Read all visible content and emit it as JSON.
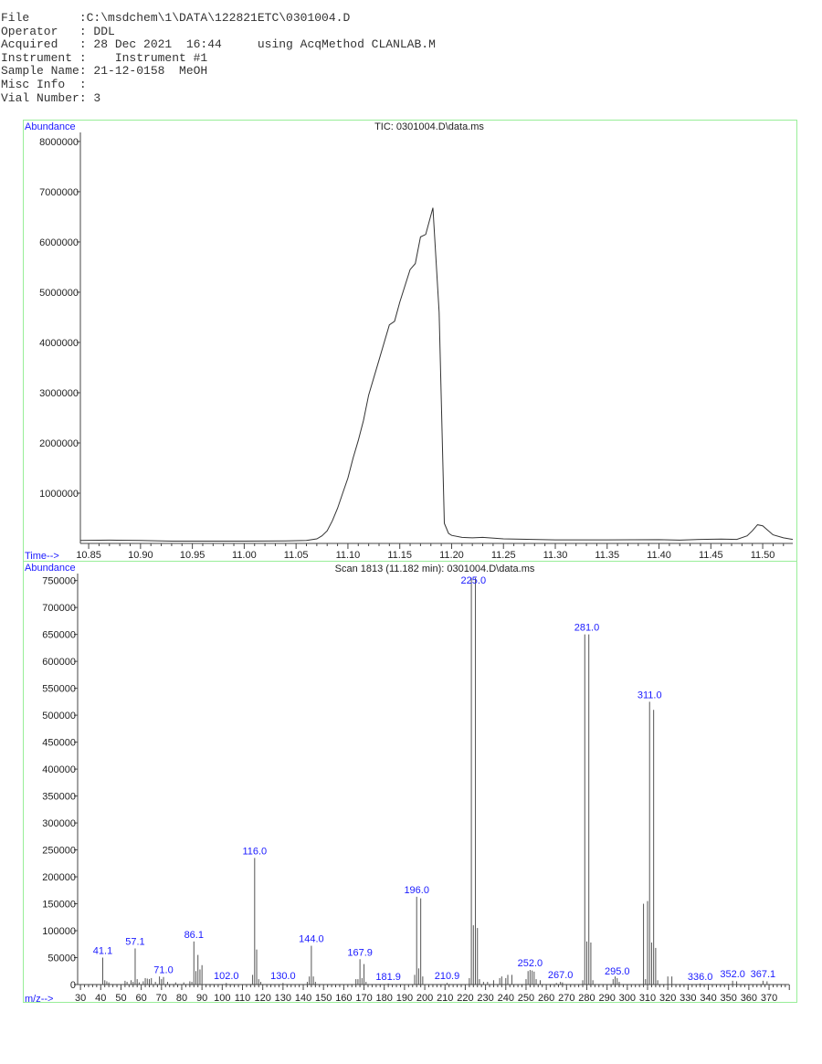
{
  "header": {
    "lines": [
      "File       :C:\\msdchem\\1\\DATA\\122821ETC\\0301004.D",
      "Operator   : DDL",
      "Acquired   : 28 Dec 2021  16:44     using AcqMethod CLANLAB.M",
      "Instrument :    Instrument #1",
      "Sample Name: 21-12-0158  MeOH",
      "Misc Info  :",
      "Vial Number: 3"
    ]
  },
  "colors": {
    "frame": "#98ee98",
    "axis_label": "#1a1aff",
    "trace": "#333333",
    "peak_label": "#1a1aff"
  },
  "chart_data": [
    {
      "type": "line",
      "title": "TIC: 0301004.D\\data.ms",
      "ylabel": "Abundance",
      "xlabel": "Time-->",
      "xlim": [
        10.842,
        11.529
      ],
      "ylim": [
        0,
        8180000
      ],
      "grid": false,
      "x_ticks": [
        "10.85",
        "10.90",
        "10.95",
        "11.00",
        "11.05",
        "11.10",
        "11.15",
        "11.20",
        "11.25",
        "11.30",
        "11.35",
        "11.40",
        "11.45",
        "11.50"
      ],
      "y_ticks": [
        "1000000",
        "2000000",
        "3000000",
        "4000000",
        "5000000",
        "6000000",
        "7000000",
        "8000000"
      ],
      "x": [
        10.842,
        10.87,
        10.9,
        10.93,
        10.95,
        11.0,
        11.04,
        11.06,
        11.07,
        11.075,
        11.08,
        11.085,
        11.09,
        11.095,
        11.1,
        11.105,
        11.11,
        11.115,
        11.12,
        11.13,
        11.14,
        11.145,
        11.15,
        11.16,
        11.165,
        11.17,
        11.175,
        11.182,
        11.188,
        11.193,
        11.197,
        11.2,
        11.21,
        11.22,
        11.23,
        11.25,
        11.3,
        11.35,
        11.4,
        11.42,
        11.44,
        11.46,
        11.475,
        11.485,
        11.49,
        11.495,
        11.5,
        11.505,
        11.51,
        11.52,
        11.529
      ],
      "y": [
        60000,
        65000,
        60000,
        45000,
        45000,
        45000,
        50000,
        60000,
        90000,
        150000,
        250000,
        450000,
        700000,
        1000000,
        1300000,
        1700000,
        2050000,
        2450000,
        2950000,
        3650000,
        4350000,
        4420000,
        4800000,
        5450000,
        5570000,
        6100000,
        6150000,
        6680000,
        4600000,
        400000,
        200000,
        160000,
        120000,
        110000,
        120000,
        90000,
        70000,
        70000,
        75000,
        65000,
        80000,
        85000,
        80000,
        150000,
        250000,
        370000,
        350000,
        260000,
        170000,
        110000,
        80000
      ]
    },
    {
      "type": "bar",
      "title": "Scan 1813 (11.182 min): 0301004.D\\data.ms",
      "ylabel": "Abundance",
      "xlabel": "m/z-->",
      "xlim": [
        28.6,
        381.7
      ],
      "ylim": [
        0,
        763000
      ],
      "grid": false,
      "x_ticks": [
        "30",
        "40",
        "50",
        "60",
        "70",
        "80",
        "90",
        "100",
        "110",
        "120",
        "130",
        "140",
        "150",
        "160",
        "170",
        "180",
        "190",
        "200",
        "210",
        "220",
        "230",
        "240",
        "250",
        "260",
        "270",
        "280",
        "290",
        "300",
        "310",
        "320",
        "330",
        "340",
        "350",
        "360",
        "370"
      ],
      "y_ticks": [
        "0",
        "50000",
        "100000",
        "150000",
        "200000",
        "250000",
        "300000",
        "350000",
        "400000",
        "450000",
        "500000",
        "550000",
        "600000",
        "650000",
        "700000",
        "750000"
      ],
      "peaks": [
        [
          41,
          50000
        ],
        [
          42,
          8000
        ],
        [
          43,
          6000
        ],
        [
          44,
          4000
        ],
        [
          52,
          7000
        ],
        [
          53,
          5000
        ],
        [
          55,
          8000
        ],
        [
          56,
          5000
        ],
        [
          57,
          67000
        ],
        [
          58,
          10000
        ],
        [
          59,
          4000
        ],
        [
          61,
          6000
        ],
        [
          62,
          12000
        ],
        [
          63,
          11000
        ],
        [
          64,
          10000
        ],
        [
          65,
          12000
        ],
        [
          67,
          5000
        ],
        [
          69,
          15000
        ],
        [
          70,
          10000
        ],
        [
          71,
          14000
        ],
        [
          73,
          5000
        ],
        [
          77,
          4000
        ],
        [
          81,
          4000
        ],
        [
          84,
          6000
        ],
        [
          85,
          5000
        ],
        [
          86,
          80000
        ],
        [
          87,
          25000
        ],
        [
          88,
          55000
        ],
        [
          89,
          28000
        ],
        [
          90,
          36000
        ],
        [
          102,
          3000
        ],
        [
          115,
          18000
        ],
        [
          116,
          235000
        ],
        [
          117,
          65000
        ],
        [
          118,
          10000
        ],
        [
          119,
          5000
        ],
        [
          130,
          3000
        ],
        [
          142,
          5000
        ],
        [
          143,
          15000
        ],
        [
          144,
          72000
        ],
        [
          145,
          15000
        ],
        [
          146,
          5000
        ],
        [
          166,
          10000
        ],
        [
          167,
          10000
        ],
        [
          168,
          47000
        ],
        [
          169,
          12000
        ],
        [
          170,
          38000
        ],
        [
          171,
          5000
        ],
        [
          182,
          2000
        ],
        [
          195,
          18000
        ],
        [
          196,
          163000
        ],
        [
          197,
          30000
        ],
        [
          198,
          160000
        ],
        [
          199,
          15000
        ],
        [
          211,
          3000
        ],
        [
          222,
          12000
        ],
        [
          223,
          755000
        ],
        [
          224,
          110000
        ],
        [
          225,
          755000
        ],
        [
          226,
          105000
        ],
        [
          227,
          10000
        ],
        [
          229,
          5000
        ],
        [
          231,
          5000
        ],
        [
          234,
          8000
        ],
        [
          237,
          12000
        ],
        [
          238,
          15000
        ],
        [
          240,
          12000
        ],
        [
          241,
          18000
        ],
        [
          243,
          18000
        ],
        [
          250,
          10000
        ],
        [
          251,
          25000
        ],
        [
          252,
          27000
        ],
        [
          253,
          26000
        ],
        [
          254,
          24000
        ],
        [
          255,
          10000
        ],
        [
          257,
          8000
        ],
        [
          265,
          3000
        ],
        [
          267,
          5000
        ],
        [
          268,
          4000
        ],
        [
          278,
          8000
        ],
        [
          279,
          650000
        ],
        [
          280,
          80000
        ],
        [
          281,
          650000
        ],
        [
          282,
          78000
        ],
        [
          283,
          8000
        ],
        [
          293,
          10000
        ],
        [
          294,
          15000
        ],
        [
          295,
          12000
        ],
        [
          296,
          5000
        ],
        [
          308,
          150000
        ],
        [
          309,
          10000
        ],
        [
          310,
          155000
        ],
        [
          311,
          525000
        ],
        [
          312,
          78000
        ],
        [
          313,
          510000
        ],
        [
          314,
          68000
        ],
        [
          315,
          8000
        ],
        [
          320,
          15000
        ],
        [
          322,
          15000
        ],
        [
          336,
          2000
        ],
        [
          352,
          7000
        ],
        [
          354,
          6000
        ],
        [
          367,
          7000
        ],
        [
          369,
          6000
        ]
      ],
      "labels": [
        {
          "text": "41.1",
          "mz": 41,
          "v": 50000
        },
        {
          "text": "57.1",
          "mz": 57,
          "v": 67000
        },
        {
          "text": "71.0",
          "mz": 71,
          "v": 14000
        },
        {
          "text": "86.1",
          "mz": 86,
          "v": 80000
        },
        {
          "text": "102.0",
          "mz": 102,
          "v": 3000
        },
        {
          "text": "116.0",
          "mz": 116,
          "v": 235000
        },
        {
          "text": "130.0",
          "mz": 130,
          "v": 3000
        },
        {
          "text": "144.0",
          "mz": 144,
          "v": 72000
        },
        {
          "text": "167.9",
          "mz": 168,
          "v": 47000
        },
        {
          "text": "181.9",
          "mz": 182,
          "v": 2000
        },
        {
          "text": "196.0",
          "mz": 196,
          "v": 163000
        },
        {
          "text": "210.9",
          "mz": 211,
          "v": 3000
        },
        {
          "text": "225.0",
          "mz": 224,
          "v": 755000
        },
        {
          "text": "252.0",
          "mz": 252,
          "v": 27000
        },
        {
          "text": "267.0",
          "mz": 267,
          "v": 5000
        },
        {
          "text": "281.0",
          "mz": 280,
          "v": 650000
        },
        {
          "text": "295.0",
          "mz": 295,
          "v": 12000
        },
        {
          "text": "311.0",
          "mz": 311,
          "v": 525000
        },
        {
          "text": "336.0",
          "mz": 336,
          "v": 2000
        },
        {
          "text": "352.0",
          "mz": 352,
          "v": 7000
        },
        {
          "text": "367.1",
          "mz": 367,
          "v": 7000
        }
      ]
    }
  ]
}
